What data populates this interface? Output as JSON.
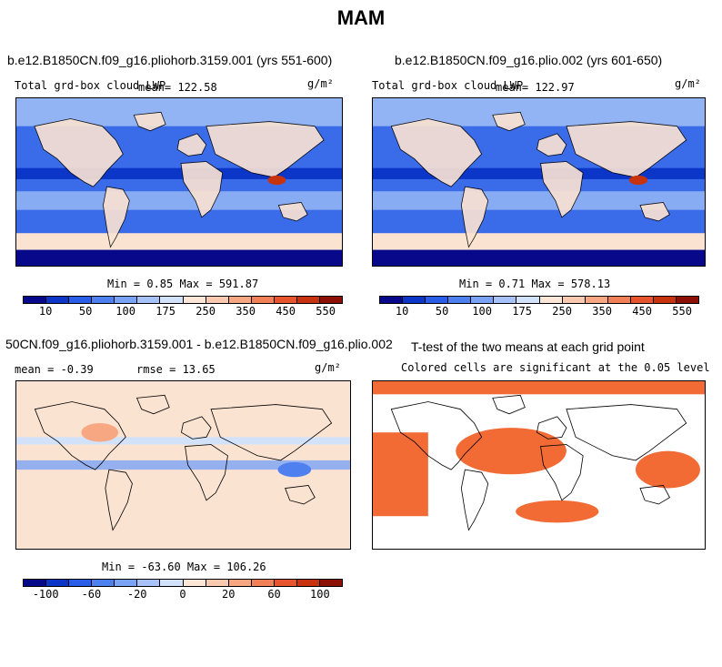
{
  "title": "MAM",
  "colors": {
    "abs_scale": [
      "#08088a",
      "#0b36c8",
      "#2a5ee6",
      "#4e80f0",
      "#7aa2f5",
      "#a6c2f8",
      "#d2e2fb",
      "#fbe6d8",
      "#f9caaf",
      "#f7a882",
      "#f28057",
      "#e6552e",
      "#c8330f",
      "#8c1004"
    ],
    "diff_scale": [
      "#08088a",
      "#0b36c8",
      "#2a5ee6",
      "#4e80f0",
      "#7aa2f5",
      "#a6c2f8",
      "#d2e2fb",
      "#fbe6d8",
      "#f9caaf",
      "#f7a882",
      "#f28057",
      "#e6552e",
      "#c8330f",
      "#8c1004"
    ],
    "significant": "#f26a34",
    "ocean_blue": "#3a6cea",
    "ocean_light": "#a9c7f7",
    "land_tint": "#fbe3d2"
  },
  "panels": {
    "p1": {
      "title": "b.e12.B1850CN.f09_g16.pliohorb.3159.001 (yrs 551-600)",
      "variable": "Total grd-box cloud LWP",
      "mean": "mean= 122.58",
      "units": "g/m²",
      "minmax": "Min =   0.85 Max = 591.87"
    },
    "p2": {
      "title": "b.e12.B1850CN.f09_g16.plio.002 (yrs 601-650)",
      "variable": "Total grd-box cloud LWP",
      "mean": "mean= 122.97",
      "units": "g/m²",
      "minmax": "Min =   0.71 Max = 578.13"
    },
    "p3": {
      "title": "50CN.f09_g16.pliohorb.3159.001 - b.e12.B1850CN.f09_g16.plio.002",
      "mean": "mean =  -0.39",
      "rmse": "rmse =  13.65",
      "units": "g/m²",
      "minmax": "Min = -63.60 Max = 106.26"
    },
    "p4": {
      "title": "T-test of the two means at each grid point",
      "subtitle": "Colored cells are significant at the 0.05 level"
    }
  },
  "colorbars": {
    "abs_ticks": [
      "10",
      "50",
      "100",
      "175",
      "250",
      "350",
      "450",
      "550"
    ],
    "diff_ticks": [
      "-100",
      "-60",
      "-20",
      "0",
      "20",
      "60",
      "100"
    ]
  }
}
